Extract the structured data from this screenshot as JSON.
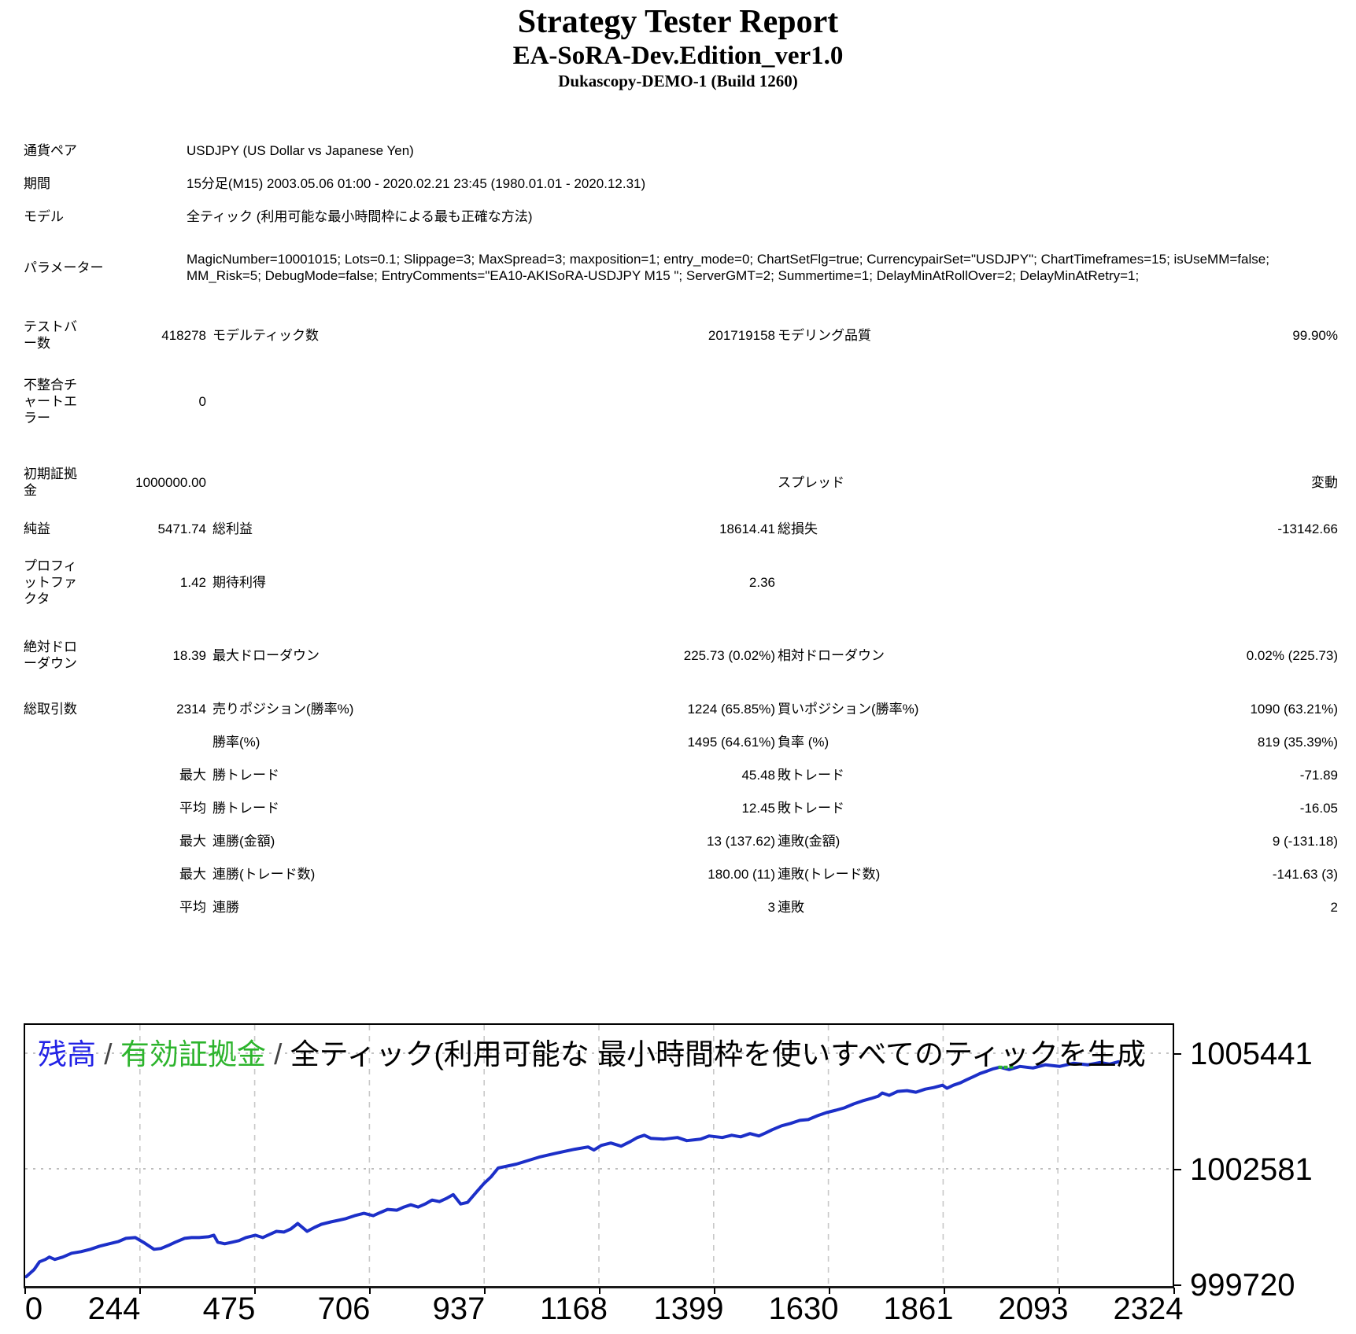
{
  "title": {
    "main": "Strategy Tester Report",
    "ea_name": "EA-SoRA-Dev.Edition_ver1.0",
    "server": "Dukascopy-DEMO-1 (Build 1260)"
  },
  "table": {
    "rows": [
      {
        "span": true,
        "cells": [
          "通貨ペア",
          "",
          "USDJPY (US Dollar vs Japanese Yen)",
          "",
          "",
          ""
        ]
      },
      {
        "span": true,
        "cells": [
          "期間",
          "",
          "15分足(M15) 2003.05.06 01:00 - 2020.02.21 23:45 (1980.01.01 - 2020.12.31)",
          "",
          "",
          ""
        ]
      },
      {
        "span": true,
        "cells": [
          "モデル",
          "",
          "全ティック (利用可能な最小時間枠による最も正確な方法)",
          "",
          "",
          ""
        ]
      },
      {
        "span": true,
        "cells": [
          "パラメーター",
          "",
          "MagicNumber=10001015; Lots=0.1; Slippage=3; MaxSpread=3; maxposition=1; entry_mode=0; ChartSetFlg=true; CurrencypairSet=\"USDJPY\"; ChartTimeframes=15; isUseMM=false; MM_Risk=5; DebugMode=false; EntryComments=\"EA10-AKISoRA-USDJPY M15 \"; ServerGMT=2; Summertime=1; DelayMinAtRollOver=2; DelayMinAtRetry=1;",
          "",
          "",
          ""
        ]
      },
      {
        "span": false,
        "cells": [
          "テストバ\nー数",
          "418278",
          "モデルティック数",
          "201719158",
          "モデリング品質",
          "99.90%"
        ]
      },
      {
        "span": false,
        "cells": [
          "不整合チ\nャートエ\nラー",
          "0",
          "",
          "",
          "",
          ""
        ]
      },
      {
        "span": false,
        "cells": [
          "初期証拠\n金",
          "1000000.00",
          "",
          "",
          "スプレッド",
          "変動"
        ]
      },
      {
        "span": false,
        "cells": [
          "純益",
          "5471.74",
          "総利益",
          "18614.41",
          "総損失",
          "-13142.66"
        ]
      },
      {
        "span": false,
        "cells": [
          "プロフィ\nットファ\nクタ",
          "1.42",
          "期待利得",
          "2.36",
          "",
          ""
        ]
      },
      {
        "span": false,
        "cells": [
          "絶対ドロ\nーダウン",
          "18.39",
          "最大ドローダウン",
          "225.73 (0.02%)",
          "相対ドローダウン",
          "0.02% (225.73)"
        ]
      },
      {
        "span": false,
        "cells": [
          "総取引数",
          "2314",
          "売りポジション(勝率%)",
          "1224 (65.85%)",
          "買いポジション(勝率%)",
          "1090 (63.21%)"
        ]
      },
      {
        "span": false,
        "cells": [
          "",
          "",
          "勝率(%)",
          "1495 (64.61%)",
          "負率 (%)",
          "819 (35.39%)"
        ]
      },
      {
        "span": false,
        "cells": [
          "",
          "最大",
          "勝トレード",
          "45.48",
          "敗トレード",
          "-71.89"
        ]
      },
      {
        "span": false,
        "cells": [
          "",
          "平均",
          "勝トレード",
          "12.45",
          "敗トレード",
          "-16.05"
        ]
      },
      {
        "span": false,
        "cells": [
          "",
          "最大",
          "連勝(金額)",
          "13 (137.62)",
          "連敗(金額)",
          "9 (-131.18)"
        ]
      },
      {
        "span": false,
        "cells": [
          "",
          "最大",
          "連勝(トレード数)",
          "180.00 (11)",
          "連敗(トレード数)",
          "-141.63 (3)"
        ]
      },
      {
        "span": false,
        "cells": [
          "",
          "平均",
          "連勝",
          "3",
          "連敗",
          "2"
        ]
      }
    ]
  },
  "chart": {
    "legend": {
      "balance_label": "残高",
      "separator": " / ",
      "equity_label": "有効証拠金",
      "model_label": "全ティック(利用可能な 最小時間枠を使いすべてのティックを生成",
      "balance_color": "#2222e6",
      "equity_color": "#2db42d",
      "separator_color": "#444444"
    },
    "colors": {
      "line": "#1c2fc8",
      "equity_dots": "#2db42d",
      "grid_vertical": "#c9c9c9",
      "grid_horizontal": "#bcbcbc",
      "border": "#000000"
    }
  },
  "chart_data": {
    "type": "line",
    "title": "",
    "xlabel": "",
    "ylabel": "",
    "grid": true,
    "legend_position": "top-left",
    "x_ticks": [
      0,
      244,
      475,
      706,
      937,
      1168,
      1399,
      1630,
      1861,
      2093,
      2324
    ],
    "y_ticks": [
      999720,
      1002581,
      1005441
    ],
    "xlim": [
      0,
      2324
    ],
    "ylim": [
      999720,
      1006141
    ],
    "series": [
      {
        "name": "残高",
        "points": [
          [
            2,
            999913
          ],
          [
            18,
            1000087
          ],
          [
            29,
            1000281
          ],
          [
            41,
            1000339
          ],
          [
            49,
            1000397
          ],
          [
            60,
            1000339
          ],
          [
            76,
            1000397
          ],
          [
            94,
            1000493
          ],
          [
            113,
            1000532
          ],
          [
            132,
            1000590
          ],
          [
            151,
            1000667
          ],
          [
            170,
            1000725
          ],
          [
            189,
            1000783
          ],
          [
            204,
            1000860
          ],
          [
            223,
            1000880
          ],
          [
            242,
            1000744
          ],
          [
            261,
            1000590
          ],
          [
            275,
            1000609
          ],
          [
            290,
            1000686
          ],
          [
            304,
            1000764
          ],
          [
            323,
            1000860
          ],
          [
            337,
            1000880
          ],
          [
            352,
            1000880
          ],
          [
            371,
            1000899
          ],
          [
            382,
            1000938
          ],
          [
            390,
            1000764
          ],
          [
            404,
            1000725
          ],
          [
            419,
            1000764
          ],
          [
            433,
            1000803
          ],
          [
            447,
            1000880
          ],
          [
            466,
            1000938
          ],
          [
            481,
            1000880
          ],
          [
            495,
            1000957
          ],
          [
            509,
            1001034
          ],
          [
            524,
            1001015
          ],
          [
            538,
            1001092
          ],
          [
            552,
            1001228
          ],
          [
            571,
            1001034
          ],
          [
            586,
            1001131
          ],
          [
            600,
            1001208
          ],
          [
            619,
            1001266
          ],
          [
            634,
            1001305
          ],
          [
            648,
            1001343
          ],
          [
            667,
            1001421
          ],
          [
            686,
            1001479
          ],
          [
            705,
            1001421
          ],
          [
            719,
            1001498
          ],
          [
            734,
            1001576
          ],
          [
            753,
            1001556
          ],
          [
            767,
            1001634
          ],
          [
            781,
            1001692
          ],
          [
            796,
            1001634
          ],
          [
            810,
            1001711
          ],
          [
            824,
            1001808
          ],
          [
            839,
            1001769
          ],
          [
            853,
            1001846
          ],
          [
            867,
            1001943
          ],
          [
            882,
            1001711
          ],
          [
            896,
            1001750
          ],
          [
            915,
            1002020
          ],
          [
            929,
            1002214
          ],
          [
            944,
            1002388
          ],
          [
            958,
            1002600
          ],
          [
            995,
            1002697
          ],
          [
            1041,
            1002871
          ],
          [
            1076,
            1002967
          ],
          [
            1113,
            1003064
          ],
          [
            1140,
            1003122
          ],
          [
            1152,
            1003045
          ],
          [
            1167,
            1003161
          ],
          [
            1186,
            1003219
          ],
          [
            1207,
            1003141
          ],
          [
            1226,
            1003257
          ],
          [
            1240,
            1003354
          ],
          [
            1254,
            1003412
          ],
          [
            1267,
            1003335
          ],
          [
            1294,
            1003315
          ],
          [
            1321,
            1003354
          ],
          [
            1340,
            1003277
          ],
          [
            1368,
            1003315
          ],
          [
            1385,
            1003393
          ],
          [
            1412,
            1003354
          ],
          [
            1431,
            1003412
          ],
          [
            1449,
            1003373
          ],
          [
            1468,
            1003451
          ],
          [
            1486,
            1003393
          ],
          [
            1500,
            1003470
          ],
          [
            1513,
            1003547
          ],
          [
            1532,
            1003644
          ],
          [
            1550,
            1003702
          ],
          [
            1569,
            1003779
          ],
          [
            1586,
            1003798
          ],
          [
            1605,
            1003895
          ],
          [
            1623,
            1003972
          ],
          [
            1642,
            1004030
          ],
          [
            1659,
            1004088
          ],
          [
            1678,
            1004185
          ],
          [
            1696,
            1004262
          ],
          [
            1713,
            1004320
          ],
          [
            1728,
            1004378
          ],
          [
            1736,
            1004456
          ],
          [
            1750,
            1004398
          ],
          [
            1767,
            1004494
          ],
          [
            1786,
            1004514
          ],
          [
            1804,
            1004475
          ],
          [
            1823,
            1004552
          ],
          [
            1840,
            1004591
          ],
          [
            1858,
            1004649
          ],
          [
            1867,
            1004572
          ],
          [
            1880,
            1004649
          ],
          [
            1894,
            1004707
          ],
          [
            1907,
            1004784
          ],
          [
            1921,
            1004862
          ],
          [
            1934,
            1004939
          ],
          [
            1948,
            1004997
          ],
          [
            1961,
            1005055
          ],
          [
            1974,
            1005094
          ],
          [
            1993,
            1005036
          ],
          [
            2015,
            1005113
          ],
          [
            2041,
            1005075
          ],
          [
            2066,
            1005152
          ],
          [
            2095,
            1005113
          ],
          [
            2123,
            1005191
          ],
          [
            2152,
            1005152
          ],
          [
            2177,
            1005210
          ],
          [
            2196,
            1005171
          ],
          [
            2214,
            1005229
          ]
        ]
      },
      {
        "name": "有効証拠金",
        "points": [
          [
            1975,
            1005094
          ],
          [
            1986,
            1005094
          ],
          [
            1997,
            1005100
          ]
        ]
      }
    ]
  }
}
